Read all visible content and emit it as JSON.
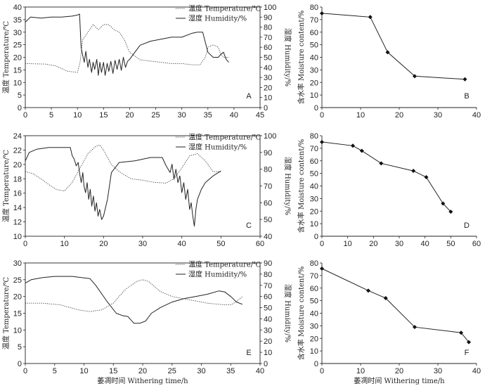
{
  "axis_labels": {
    "temperature": "温度 Temperature/℃",
    "humidity": "湿度 Humidity/%",
    "moisture": "含水率 Moisture content/%",
    "time": "萎凋时间  Withering time/h"
  },
  "chart_data": [
    {
      "id": "A",
      "type": "line",
      "panel_label": "A",
      "x_range": [
        0,
        45
      ],
      "x_ticks": [
        "0",
        "5",
        "10",
        "15",
        "20",
        "25",
        "30",
        "35",
        "40",
        "45"
      ],
      "y_left_range": [
        0,
        40
      ],
      "y_left_ticks": [
        "0",
        "5",
        "10",
        "15",
        "20",
        "25",
        "30",
        "35",
        "40"
      ],
      "y_right_range": [
        0,
        100
      ],
      "y_right_ticks": [
        "0",
        "10",
        "20",
        "30",
        "40",
        "50",
        "60",
        "70",
        "80",
        "90",
        "100"
      ],
      "legend": [
        "温度 Temperature/℃",
        "湿度 Humidity/%"
      ],
      "series": [
        {
          "name": "温度 Temperature/℃",
          "axis": "left",
          "style": "dotted",
          "points": [
            [
              0,
              17.5
            ],
            [
              2,
              17.4
            ],
            [
              4,
              17.3
            ],
            [
              6,
              16.5
            ],
            [
              8,
              14.5
            ],
            [
              10,
              14
            ],
            [
              10.5,
              18
            ],
            [
              11,
              27
            ],
            [
              12,
              30
            ],
            [
              13,
              33
            ],
            [
              14,
              31
            ],
            [
              15,
              33
            ],
            [
              16,
              33
            ],
            [
              17,
              31
            ],
            [
              18,
              30
            ],
            [
              19,
              27
            ],
            [
              20,
              22
            ],
            [
              22,
              19
            ],
            [
              24,
              18.5
            ],
            [
              26,
              18
            ],
            [
              28,
              17.5
            ],
            [
              30,
              17.5
            ],
            [
              32,
              17
            ],
            [
              33.5,
              17
            ],
            [
              34.5,
              20
            ],
            [
              35,
              24
            ],
            [
              36,
              25
            ],
            [
              37,
              24
            ],
            [
              37.5,
              21
            ],
            [
              38,
              20
            ],
            [
              39,
              20
            ]
          ]
        },
        {
          "name": "湿度 Humidity/%",
          "axis": "right",
          "style": "solid",
          "points": [
            [
              0,
              85
            ],
            [
              1,
              90
            ],
            [
              3,
              89
            ],
            [
              5,
              90
            ],
            [
              7,
              90
            ],
            [
              9,
              91
            ],
            [
              10,
              92
            ],
            [
              10.4,
              93
            ],
            [
              10.7,
              60
            ],
            [
              11,
              52
            ],
            [
              11.3,
              45
            ],
            [
              11.6,
              56
            ],
            [
              12,
              40
            ],
            [
              12.3,
              48
            ],
            [
              12.7,
              35
            ],
            [
              13,
              45
            ],
            [
              13.3,
              38
            ],
            [
              13.7,
              48
            ],
            [
              14,
              32
            ],
            [
              14.3,
              45
            ],
            [
              14.6,
              35
            ],
            [
              15,
              45
            ],
            [
              15.3,
              32
            ],
            [
              15.7,
              44
            ],
            [
              16,
              36
            ],
            [
              16.4,
              46
            ],
            [
              16.8,
              34
            ],
            [
              17.2,
              47
            ],
            [
              17.6,
              38
            ],
            [
              18,
              48
            ],
            [
              18.4,
              37
            ],
            [
              18.8,
              50
            ],
            [
              19.2,
              40
            ],
            [
              19.6,
              46
            ],
            [
              20,
              48
            ],
            [
              21,
              55
            ],
            [
              22,
              62
            ],
            [
              24,
              66
            ],
            [
              26,
              68
            ],
            [
              28,
              70
            ],
            [
              30,
              70
            ],
            [
              32,
              74
            ],
            [
              33,
              75
            ],
            [
              34,
              75
            ],
            [
              35,
              55
            ],
            [
              36,
              50
            ],
            [
              37,
              50
            ],
            [
              37.5,
              53
            ],
            [
              38,
              55
            ],
            [
              38.5,
              48
            ],
            [
              39,
              45
            ]
          ]
        }
      ]
    },
    {
      "id": "B",
      "type": "line",
      "panel_label": "B",
      "x_range": [
        0,
        40
      ],
      "x_ticks": [
        "0",
        "10",
        "20",
        "30",
        "40"
      ],
      "y_range": [
        0,
        80
      ],
      "y_ticks": [
        "0",
        "10",
        "20",
        "30",
        "40",
        "50",
        "60",
        "70",
        "80"
      ],
      "ylabel": "含水率 Moisture content/%",
      "series": [
        {
          "name": "Moisture content",
          "points": [
            [
              0,
              75
            ],
            [
              12.5,
              72
            ],
            [
              17,
              44
            ],
            [
              24,
              25
            ],
            [
              37,
              22.5
            ]
          ]
        }
      ]
    },
    {
      "id": "C",
      "type": "line",
      "panel_label": "C",
      "x_range": [
        0,
        60
      ],
      "x_ticks": [
        "0",
        "10",
        "20",
        "30",
        "40",
        "50",
        "60"
      ],
      "y_left_range": [
        10,
        24
      ],
      "y_left_ticks": [
        "10",
        "12",
        "14",
        "16",
        "18",
        "20",
        "22",
        "24"
      ],
      "y_right_range": [
        40,
        100
      ],
      "y_right_ticks": [
        "40",
        "50",
        "60",
        "70",
        "80",
        "90",
        "100"
      ],
      "legend": [
        "温度 Temperature/℃",
        "湿度 Humidity/%"
      ],
      "series": [
        {
          "name": "温度 Temperature/℃",
          "axis": "left",
          "style": "dotted",
          "points": [
            [
              0,
              19
            ],
            [
              2,
              18.7
            ],
            [
              4,
              18
            ],
            [
              6,
              17.2
            ],
            [
              8,
              16.5
            ],
            [
              10,
              16.3
            ],
            [
              12,
              17.5
            ],
            [
              14,
              19.5
            ],
            [
              16,
              21.5
            ],
            [
              18,
              22.5
            ],
            [
              19,
              22.7
            ],
            [
              20,
              22
            ],
            [
              22,
              20
            ],
            [
              24,
              19
            ],
            [
              27,
              18
            ],
            [
              30,
              17.8
            ],
            [
              33,
              17.5
            ],
            [
              36,
              17.4
            ],
            [
              38,
              18
            ],
            [
              40,
              19.5
            ],
            [
              42,
              21.2
            ],
            [
              44,
              21.5
            ],
            [
              46,
              20.5
            ],
            [
              48,
              19
            ],
            [
              50,
              19
            ]
          ]
        },
        {
          "name": "湿度 Humidity/%",
          "axis": "right",
          "style": "solid",
          "points": [
            [
              0,
              85
            ],
            [
              1,
              90
            ],
            [
              3,
              92
            ],
            [
              6,
              93
            ],
            [
              9,
              93
            ],
            [
              11.5,
              93
            ],
            [
              12,
              88
            ],
            [
              12.5,
              86
            ],
            [
              13,
              82
            ],
            [
              13.5,
              84
            ],
            [
              14,
              76
            ],
            [
              14.3,
              72
            ],
            [
              14.7,
              78
            ],
            [
              15,
              70
            ],
            [
              15.4,
              66
            ],
            [
              15.8,
              72
            ],
            [
              16.2,
              62
            ],
            [
              16.6,
              68
            ],
            [
              17,
              58
            ],
            [
              17.4,
              64
            ],
            [
              17.8,
              55
            ],
            [
              18.2,
              60
            ],
            [
              18.6,
              52
            ],
            [
              19,
              56
            ],
            [
              19.5,
              50
            ],
            [
              20,
              52
            ],
            [
              21,
              62
            ],
            [
              22,
              78
            ],
            [
              24,
              84
            ],
            [
              28,
              85
            ],
            [
              32,
              87
            ],
            [
              35,
              87
            ],
            [
              36,
              82
            ],
            [
              37,
              78
            ],
            [
              37.5,
              83
            ],
            [
              38,
              74
            ],
            [
              38.5,
              80
            ],
            [
              39,
              72
            ],
            [
              39.5,
              76
            ],
            [
              40,
              66
            ],
            [
              40.5,
              72
            ],
            [
              41,
              62
            ],
            [
              41.5,
              68
            ],
            [
              42,
              56
            ],
            [
              42.4,
              60
            ],
            [
              42.8,
              52
            ],
            [
              43.2,
              46
            ],
            [
              43.6,
              56
            ],
            [
              44,
              62
            ],
            [
              45,
              68
            ],
            [
              46,
              72
            ],
            [
              48,
              76
            ],
            [
              50,
              79
            ]
          ]
        }
      ]
    },
    {
      "id": "D",
      "type": "line",
      "panel_label": "D",
      "x_range": [
        0,
        60
      ],
      "x_ticks": [
        "0",
        "10",
        "20",
        "30",
        "40",
        "50",
        "60"
      ],
      "y_range": [
        0,
        80
      ],
      "y_ticks": [
        "0",
        "10",
        "20",
        "30",
        "40",
        "50",
        "60",
        "70",
        "80"
      ],
      "ylabel": "含水率 Moisture content/%",
      "series": [
        {
          "name": "Moisture content",
          "points": [
            [
              0,
              75
            ],
            [
              12,
              72
            ],
            [
              15.5,
              68
            ],
            [
              23,
              58
            ],
            [
              35.5,
              52
            ],
            [
              40.5,
              47
            ],
            [
              47,
              26
            ],
            [
              50,
              19.5
            ]
          ]
        }
      ]
    },
    {
      "id": "E",
      "type": "line",
      "panel_label": "E",
      "x_range": [
        0,
        40
      ],
      "x_ticks": [
        "0",
        "5",
        "10",
        "15",
        "20",
        "25",
        "30",
        "35",
        "40"
      ],
      "y_left_range": [
        0,
        30
      ],
      "y_left_ticks": [
        "0",
        "5",
        "10",
        "15",
        "20",
        "25",
        "30"
      ],
      "y_right_range": [
        0,
        90
      ],
      "y_right_ticks": [
        "0",
        "10",
        "20",
        "30",
        "40",
        "50",
        "60",
        "70",
        "80",
        "90"
      ],
      "legend": [
        "温度 Temperature/℃",
        "湿度 Humidity/%"
      ],
      "xlabel": "萎凋时间  Withering time/h",
      "series": [
        {
          "name": "温度 Temperature/℃",
          "axis": "left",
          "style": "dotted",
          "points": [
            [
              0,
              18
            ],
            [
              3,
              18
            ],
            [
              6,
              17.5
            ],
            [
              9,
              16
            ],
            [
              11,
              15.5
            ],
            [
              13,
              16
            ],
            [
              15,
              18
            ],
            [
              17,
              22
            ],
            [
              19,
              24.5
            ],
            [
              20,
              25
            ],
            [
              21,
              24.5
            ],
            [
              23,
              21.5
            ],
            [
              25,
              20
            ],
            [
              28,
              19
            ],
            [
              31,
              18
            ],
            [
              34,
              17.5
            ],
            [
              35,
              17.5
            ],
            [
              36,
              18.5
            ],
            [
              37,
              20
            ]
          ]
        },
        {
          "name": "湿度 Humidity/%",
          "axis": "right",
          "style": "solid",
          "points": [
            [
              0,
              72
            ],
            [
              1,
              75
            ],
            [
              3,
              77
            ],
            [
              5,
              78
            ],
            [
              8,
              78
            ],
            [
              11,
              76
            ],
            [
              12,
              70
            ],
            [
              14,
              55
            ],
            [
              15.5,
              45
            ],
            [
              16.5,
              43
            ],
            [
              17.5,
              42
            ],
            [
              18.5,
              36
            ],
            [
              19.5,
              36
            ],
            [
              20.5,
              38
            ],
            [
              21.5,
              45
            ],
            [
              23,
              50
            ],
            [
              25,
              55
            ],
            [
              27,
              58
            ],
            [
              29,
              60
            ],
            [
              31,
              62
            ],
            [
              33,
              65
            ],
            [
              34,
              64
            ],
            [
              35,
              60
            ],
            [
              36,
              55
            ],
            [
              37,
              53
            ]
          ]
        }
      ]
    },
    {
      "id": "F",
      "type": "line",
      "panel_label": "F",
      "x_range": [
        0,
        40
      ],
      "x_ticks": [
        "0",
        "10",
        "20",
        "30",
        "40"
      ],
      "y_range": [
        0,
        80
      ],
      "y_ticks": [
        "0",
        "10",
        "20",
        "30",
        "40",
        "50",
        "60",
        "70",
        "80"
      ],
      "ylabel": "含水率 Moisture content/%",
      "xlabel": "萎凋时间  Withering time/h",
      "series": [
        {
          "name": "Moisture content",
          "points": [
            [
              0,
              75.5
            ],
            [
              12,
              58
            ],
            [
              16.5,
              52
            ],
            [
              24,
              29
            ],
            [
              36,
              24.5
            ],
            [
              38,
              17
            ]
          ]
        }
      ]
    }
  ]
}
